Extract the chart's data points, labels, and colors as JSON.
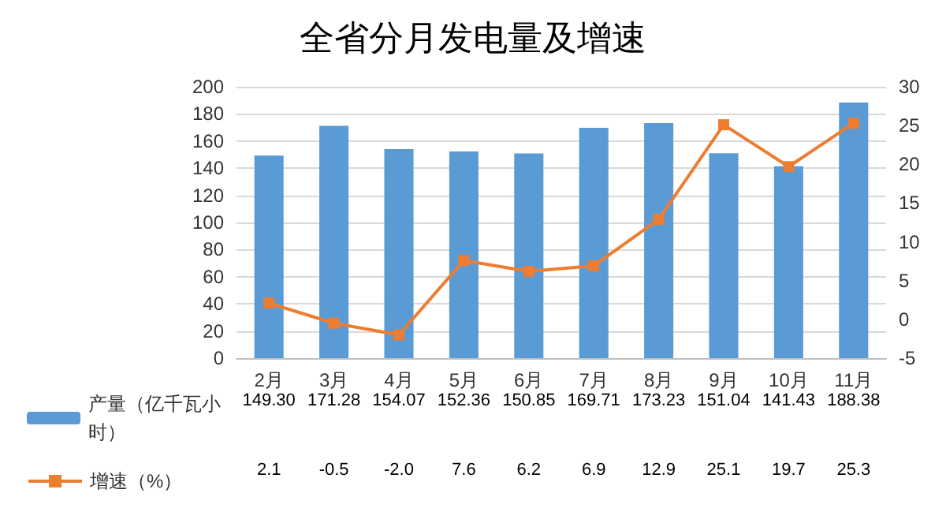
{
  "chart_data": {
    "type": "bar",
    "title": "全省分月发电量及增速",
    "categories": [
      "2月",
      "3月",
      "4月",
      "5月",
      "6月",
      "7月",
      "8月",
      "9月",
      "10月",
      "11月"
    ],
    "series": [
      {
        "name": "产量（亿千瓦小时）",
        "color": "#5b9bd5",
        "values": [
          149.3,
          171.28,
          154.07,
          152.36,
          150.85,
          169.71,
          173.23,
          151.04,
          141.43,
          188.38
        ],
        "value_labels": [
          "149.30",
          "171.28",
          "154.07",
          "152.36",
          "150.85",
          "169.71",
          "173.23",
          "151.04",
          "141.43",
          "188.38"
        ]
      },
      {
        "name": "增速（%）",
        "type": "line",
        "axis": "y2",
        "color": "#ed7d31",
        "marker": "square",
        "values": [
          2.1,
          -0.5,
          -2.0,
          7.6,
          6.2,
          6.9,
          12.9,
          25.1,
          19.7,
          25.3
        ],
        "value_labels": [
          "2.1",
          "-0.5",
          "-2.0",
          "7.6",
          "6.2",
          "6.9",
          "12.9",
          "25.1",
          "19.7",
          "25.3"
        ]
      }
    ],
    "ylim": [
      0,
      200
    ],
    "yticks": [
      0,
      20,
      40,
      60,
      80,
      100,
      120,
      140,
      160,
      180,
      200
    ],
    "y2lim": [
      -5,
      30
    ],
    "y2ticks": [
      -5,
      0,
      5,
      10,
      15,
      20,
      25,
      30
    ],
    "grid": "y",
    "legend": "bottom left"
  }
}
